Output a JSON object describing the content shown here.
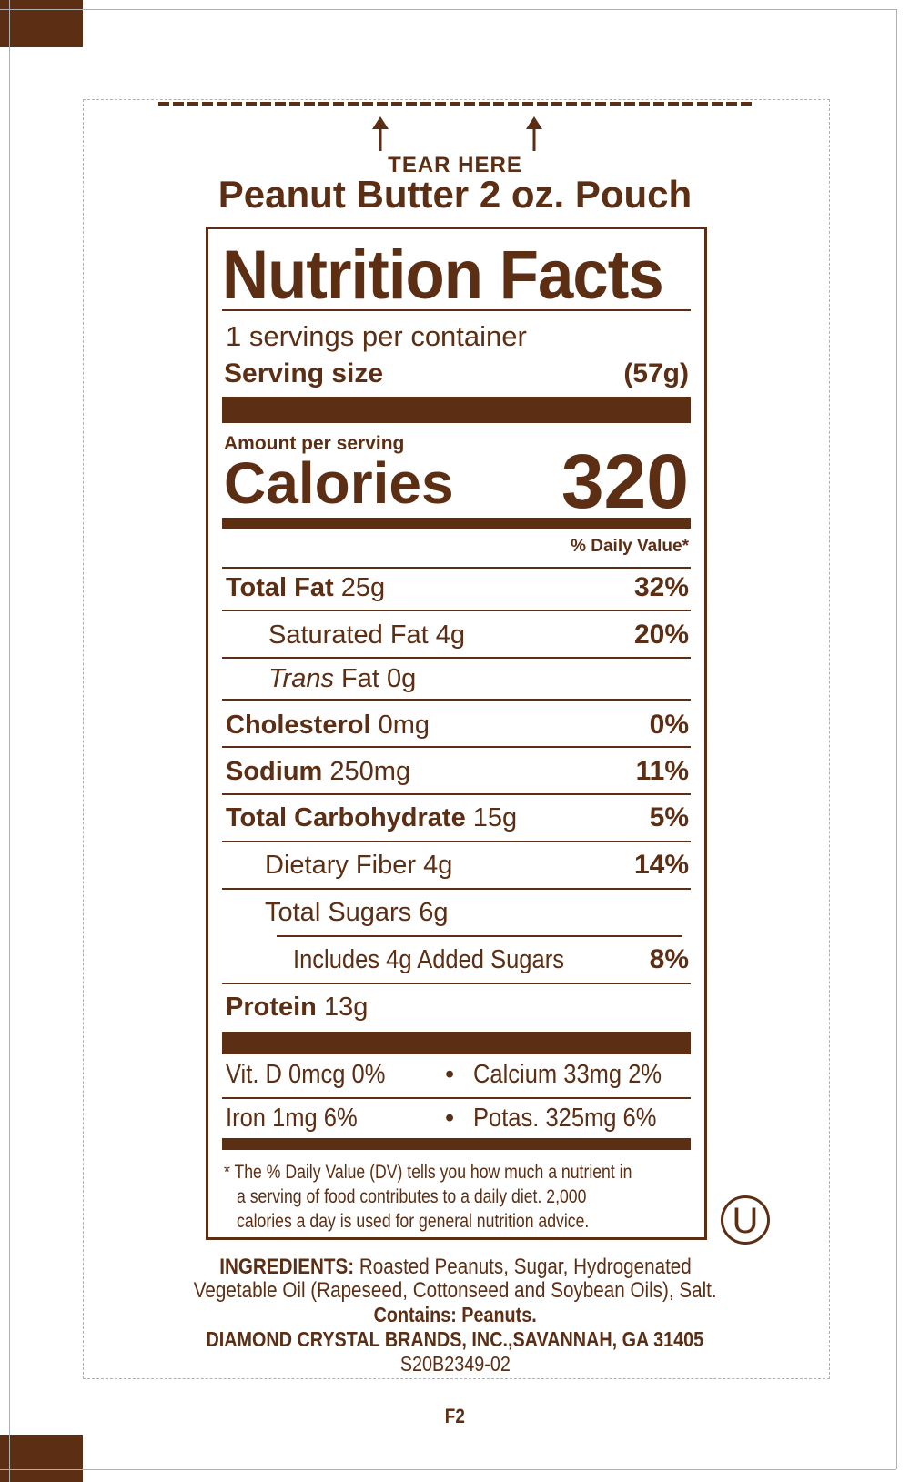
{
  "colors": {
    "brand": "#5c2e14",
    "guide": "#b0b0b0"
  },
  "tear": {
    "label": "TEAR HERE",
    "icon": "arrow-up-icon"
  },
  "title": "Peanut Butter 2 oz. Pouch",
  "facts": {
    "heading": "Nutrition Facts",
    "servings": "1 servings per container",
    "serving_size_label": "Serving size",
    "serving_size_value": "(57g)",
    "amount_per_serving": "Amount per serving",
    "calories_label": "Calories",
    "calories_value": "320",
    "dv_header": "% Daily Value*",
    "rows": [
      {
        "name": "Total Fat",
        "amount": "25g",
        "dv": "32%"
      },
      {
        "name": "Saturated Fat",
        "amount": "4g",
        "dv": "20%"
      },
      {
        "name_italic": "Trans",
        "name": "Fat",
        "amount": "0g",
        "dv": ""
      },
      {
        "name": "Cholesterol",
        "amount": "0mg",
        "dv": "0%"
      },
      {
        "name": "Sodium",
        "amount": "250mg",
        "dv": "11%"
      },
      {
        "name": "Total Carbohydrate",
        "amount": "15g",
        "dv": "5%"
      },
      {
        "name": "Dietary Fiber",
        "amount": "4g",
        "dv": "14%"
      },
      {
        "name": "Total Sugars",
        "amount": "6g",
        "dv": ""
      },
      {
        "name": "Includes 4g Added Sugars",
        "amount": "",
        "dv": "8%"
      },
      {
        "name": "Protein",
        "amount": "13g",
        "dv": ""
      }
    ],
    "vitamins": [
      {
        "left": "Vit. D 0mcg 0%",
        "right": "Calcium 33mg 2%"
      },
      {
        "left": "Iron 1mg 6%",
        "right": "Potas. 325mg 6%"
      }
    ],
    "bullet": "•",
    "footnote": [
      "* The % Daily Value (DV) tells you how much a nutrient in",
      "a serving of food contributes to a daily diet. 2,000",
      "calories a day is used for general nutrition advice."
    ]
  },
  "kosher_symbol": "U",
  "ingredients": {
    "label": "INGREDIENTS:",
    "line1": "Roasted Peanuts, Sugar, Hydrogenated",
    "line2": "Vegetable Oil (Rapeseed, Cottonseed and Soybean Oils), Salt.",
    "contains": "Contains: Peanuts.",
    "manufacturer": "DIAMOND CRYSTAL BRANDS, INC.,SAVANNAH, GA 31405",
    "code": "S20B2349-02"
  },
  "plate_code": "F2"
}
